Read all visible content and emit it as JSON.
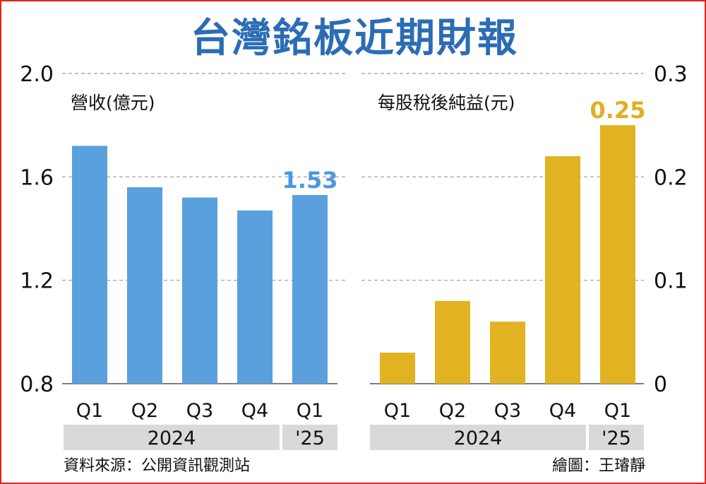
{
  "title": "台灣銘板近期財報",
  "source": "資料來源：公開資訊觀測站",
  "credit": "繪圖：王璿靜",
  "colors": {
    "revenue": "#5aa0dc",
    "eps": "#e1b322",
    "revenue_label": "#4b98de",
    "eps_label": "#e0b020",
    "title": "#2b6cb5",
    "grid": "#9a9a9a",
    "year_band": "#d9d9d9",
    "frame": "#e2231a"
  },
  "chart_data": [
    {
      "type": "bar",
      "title": "營收(億元)",
      "categories": [
        "Q1",
        "Q2",
        "Q3",
        "Q4",
        "Q1"
      ],
      "groups": [
        {
          "label": "2024",
          "span": 4
        },
        {
          "label": "'25",
          "span": 1
        }
      ],
      "values": [
        1.72,
        1.56,
        1.52,
        1.47,
        1.53
      ],
      "highlight_label": "1.53",
      "ylim": [
        0.8,
        2.0
      ],
      "yticks": [
        "0.8",
        "1.2",
        "1.6",
        "2.0"
      ],
      "ytick_values": [
        0.8,
        1.2,
        1.6,
        2.0
      ],
      "y_axis_side": "left",
      "grid": true
    },
    {
      "type": "bar",
      "title": "每股稅後純益(元)",
      "categories": [
        "Q1",
        "Q2",
        "Q3",
        "Q4",
        "Q1"
      ],
      "groups": [
        {
          "label": "2024",
          "span": 4
        },
        {
          "label": "'25",
          "span": 1
        }
      ],
      "values": [
        0.03,
        0.08,
        0.06,
        0.22,
        0.25
      ],
      "highlight_label": "0.25",
      "ylim": [
        0,
        0.3
      ],
      "yticks": [
        "0",
        "0.1",
        "0.2",
        "0.3"
      ],
      "ytick_values": [
        0,
        0.1,
        0.2,
        0.3
      ],
      "y_axis_side": "right",
      "grid": true
    }
  ]
}
